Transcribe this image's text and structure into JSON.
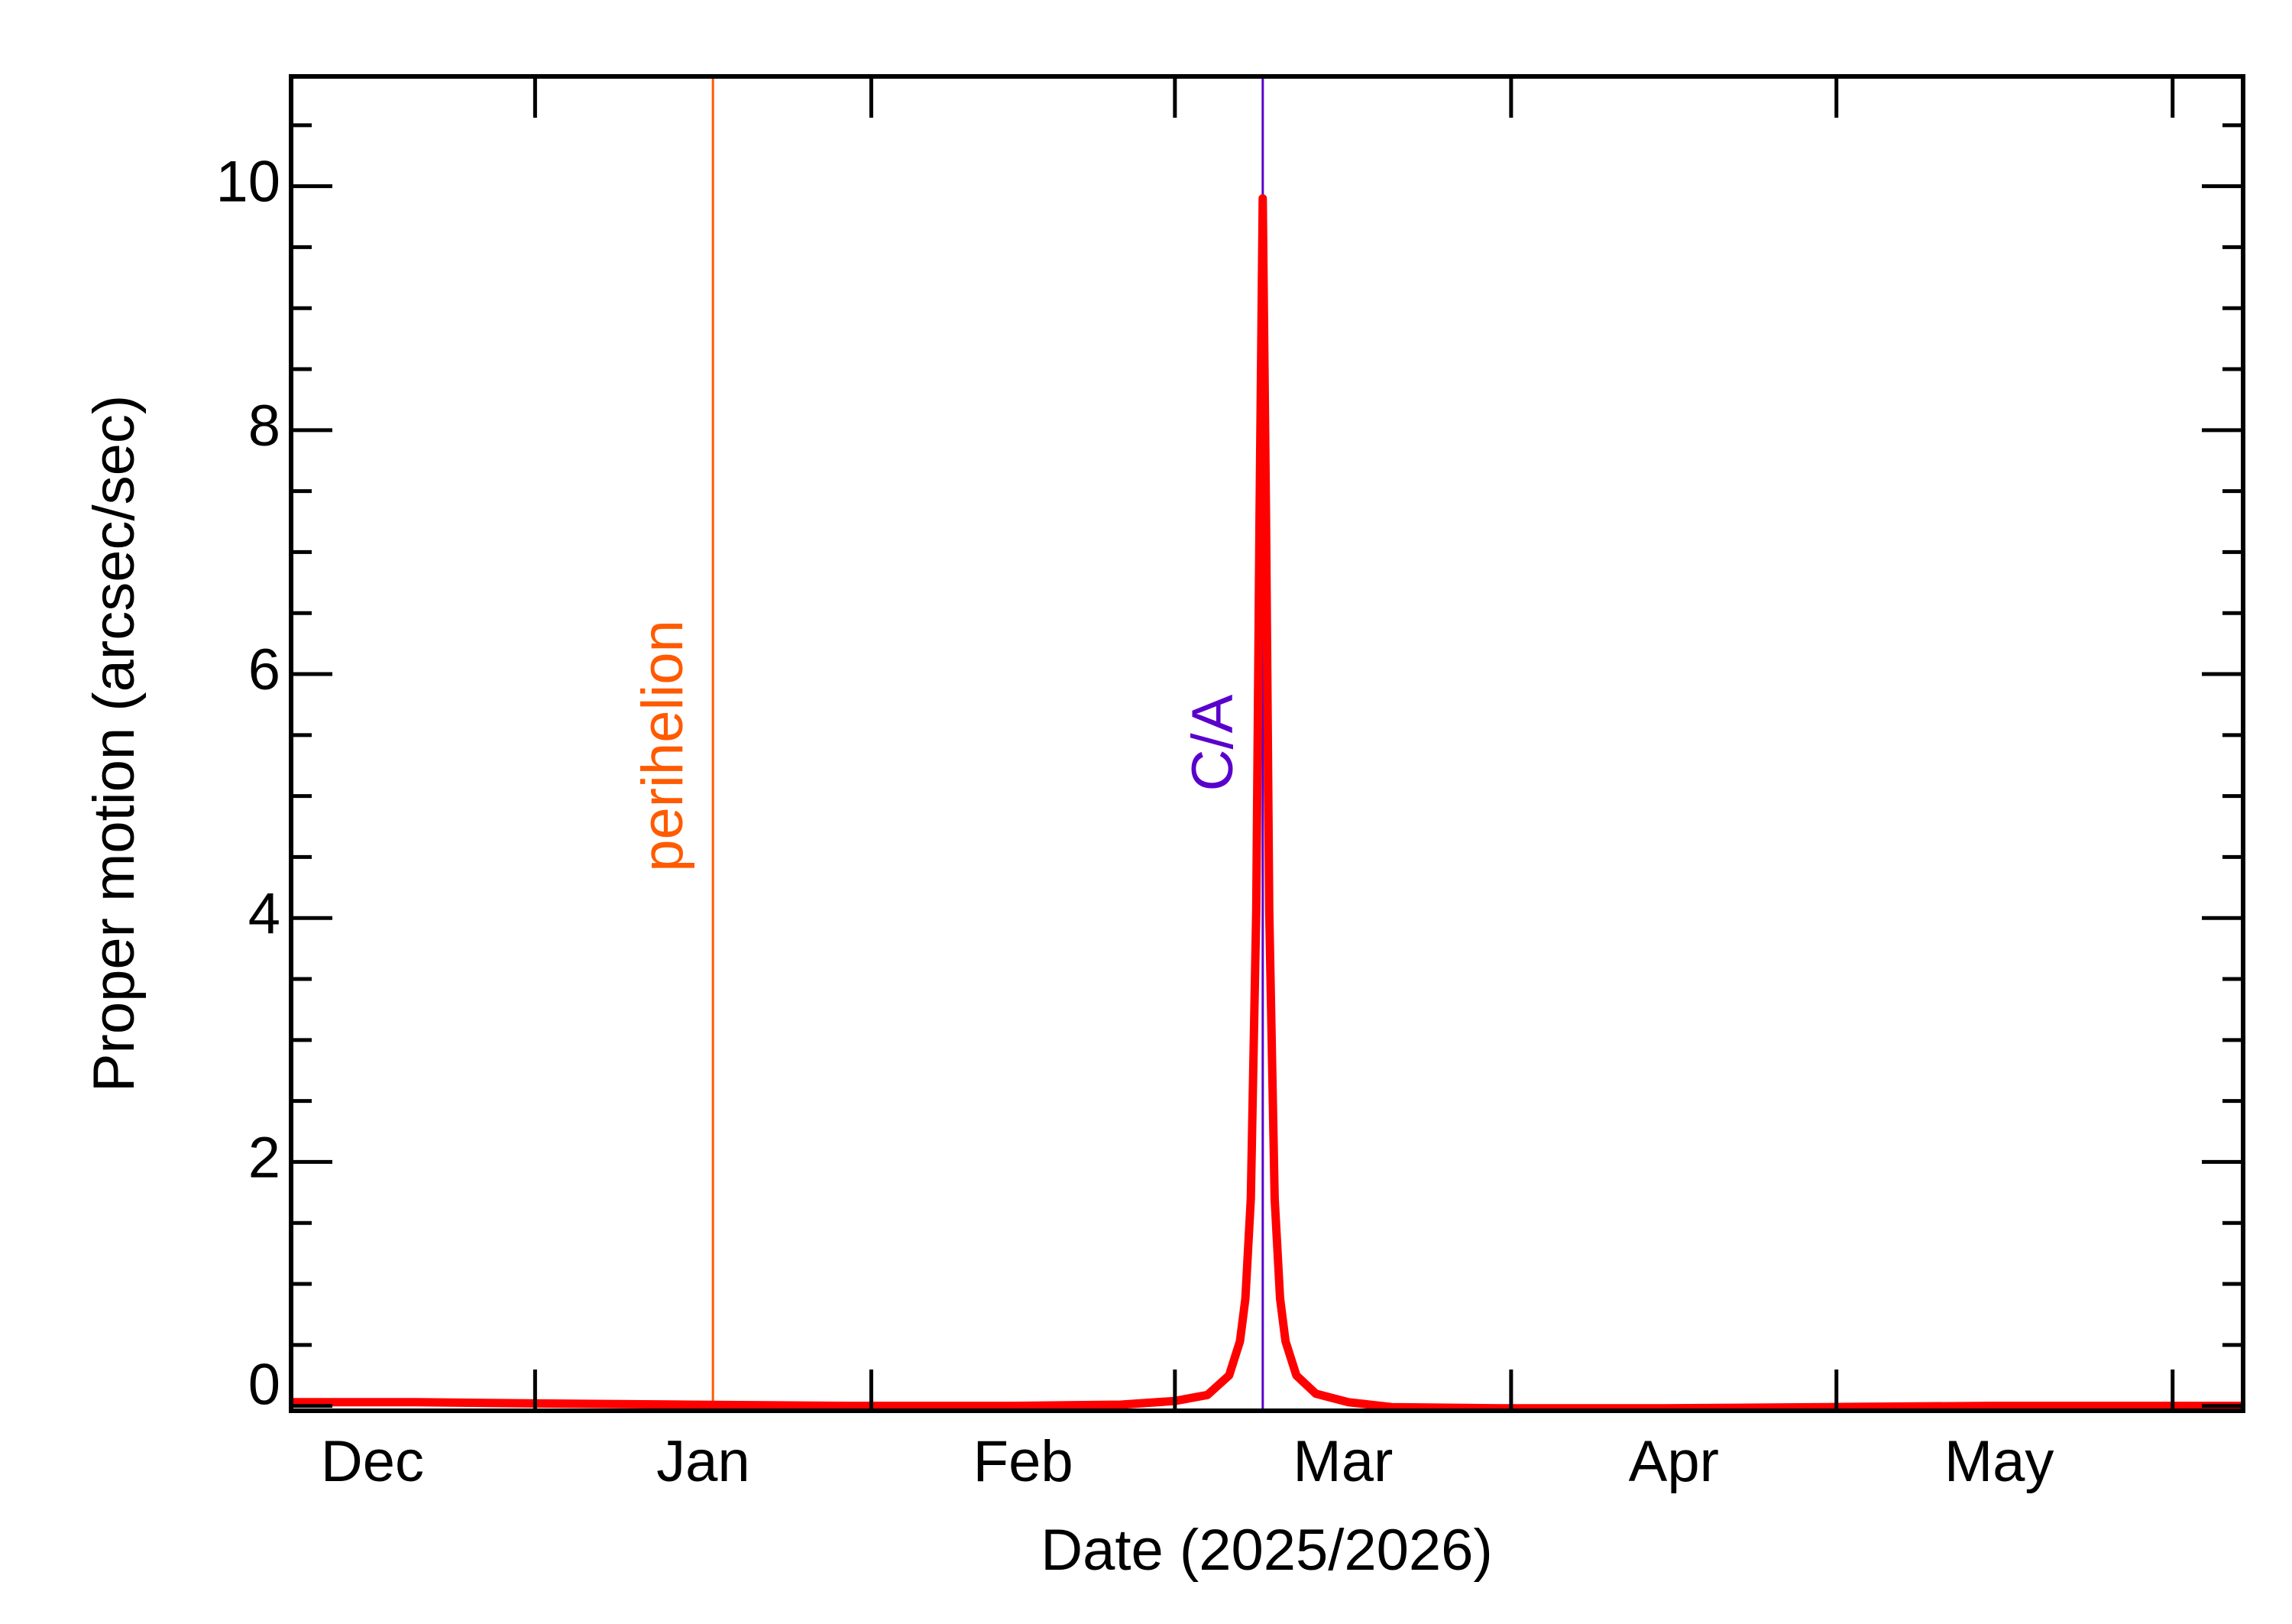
{
  "chart_data": {
    "type": "line",
    "x_label": "Date (2025/2026)",
    "y_label": "Proper motion (arcsec/sec)",
    "x": [
      8.5,
      20,
      31,
      45,
      60,
      75,
      85,
      90,
      93,
      95,
      96,
      96.5,
      97,
      97.5,
      97.8,
      98.1,
      98.4,
      98.7,
      99.2,
      99.7,
      100.2,
      101.2,
      103,
      106,
      110,
      120,
      135,
      150,
      165,
      180,
      188.5
    ],
    "values": [
      0.03,
      0.03,
      0.02,
      0.01,
      0.0,
      0.0,
      0.01,
      0.04,
      0.09,
      0.25,
      0.53,
      0.88,
      1.7,
      4.06,
      7.28,
      9.9,
      7.28,
      4.06,
      1.7,
      0.88,
      0.53,
      0.25,
      0.1,
      0.03,
      -0.01,
      -0.02,
      -0.02,
      -0.01,
      0.0,
      0.0,
      0.0
    ],
    "color": "#ff0000",
    "xlim": [
      8.5,
      188.5
    ],
    "xticks": [
      31,
      62,
      90,
      121,
      151,
      182
    ],
    "month_labels": [
      {
        "value": 16,
        "label": "Dec"
      },
      {
        "value": 46.5,
        "label": "Jan"
      },
      {
        "value": 76,
        "label": "Feb"
      },
      {
        "value": 105.5,
        "label": "Mar"
      },
      {
        "value": 136,
        "label": "Apr"
      },
      {
        "value": 166,
        "label": "May"
      }
    ],
    "ylim": [
      -0.04,
      10.9
    ],
    "yticks": [
      0,
      2,
      4,
      6,
      8,
      10
    ],
    "yminor_ticks": [
      0.5,
      1,
      1.5,
      2.5,
      3,
      3.5,
      4.5,
      5,
      5.5,
      6.5,
      7,
      7.5,
      8.5,
      9,
      9.5,
      10.5
    ],
    "vlines": [
      {
        "x": 47.4,
        "label": "perihelion",
        "color": "#ff5a00"
      },
      {
        "x": 98.1,
        "label": "C/A",
        "color": "#5a00cc"
      }
    ]
  }
}
